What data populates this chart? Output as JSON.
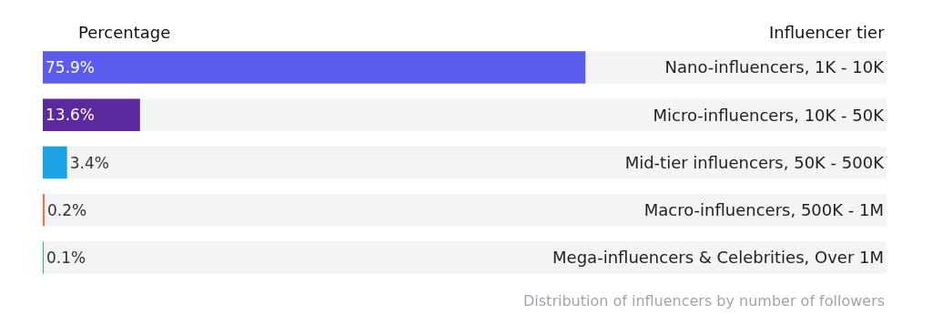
{
  "chart_data": {
    "type": "bar",
    "orientation": "horizontal",
    "xlabel": "Percentage",
    "ylabel": "Influencer tier",
    "categories": [
      "Nano-influencers, 1K - 10K",
      "Micro-influencers, 10K - 50K",
      "Mid-tier influencers, 50K - 500K",
      "Macro-influencers, 500K - 1M",
      "Mega-influencers & Celebrities, Over 1M"
    ],
    "values": [
      75.9,
      13.6,
      3.4,
      0.2,
      0.1
    ],
    "value_labels": [
      "75.9%",
      "13.6%",
      "3.4%",
      "0.2%",
      "0.1%"
    ],
    "colors": [
      "#5c5cec",
      "#5b2a9e",
      "#1ba3e6",
      "#ff6a3d",
      "#2ebd6b"
    ],
    "xlim": [
      0,
      118
    ],
    "annotations": [
      "Distribution of influencers by number of followers"
    ]
  }
}
